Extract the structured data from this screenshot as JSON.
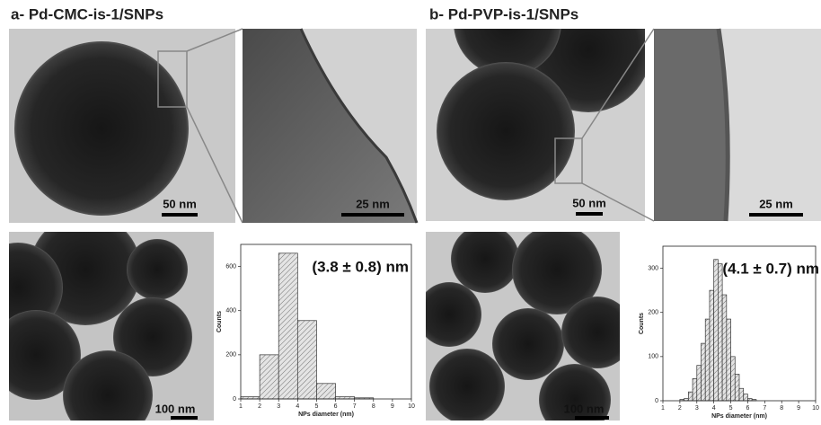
{
  "panels": [
    {
      "title": "a- Pd-CMC-is-1/SNPs",
      "scale_main": "50 nm",
      "scale_zoom": "25 nm",
      "scale_overview": "100 nm"
    },
    {
      "title": "b- Pd-PVP-is-1/SNPs",
      "scale_main": "50 nm",
      "scale_zoom": "25 nm",
      "scale_overview": "100 nm"
    }
  ],
  "chart_data": [
    {
      "type": "histogram",
      "annotation": "(3.8 ± 0.8) nm",
      "xlabel": "NPs diameter (nm)",
      "ylabel": "Counts",
      "bins": [
        1,
        2,
        3,
        4,
        5,
        6,
        7,
        8
      ],
      "values": [
        10,
        200,
        660,
        355,
        70,
        10,
        5
      ],
      "xlim": [
        1,
        10
      ],
      "xticks": [
        1,
        2,
        3,
        4,
        5,
        6,
        7,
        8,
        9,
        10
      ],
      "ylim": [
        0,
        700
      ],
      "yticks": [
        0,
        200,
        400,
        600
      ]
    },
    {
      "type": "histogram",
      "annotation": "(4.1 ± 0.7) nm",
      "xlabel": "NPs diameter (nm)",
      "ylabel": "Counts",
      "bins": [
        2,
        2.25,
        2.5,
        2.75,
        3,
        3.25,
        3.5,
        3.75,
        4,
        4.25,
        4.5,
        4.75,
        5,
        5.25,
        5.5,
        5.75,
        6,
        6.25,
        6.5
      ],
      "values": [
        3,
        5,
        20,
        50,
        80,
        130,
        185,
        250,
        320,
        310,
        240,
        185,
        100,
        60,
        28,
        15,
        5,
        3
      ],
      "xlim": [
        1,
        10
      ],
      "xticks": [
        1,
        2,
        3,
        4,
        5,
        6,
        7,
        8,
        9,
        10
      ],
      "ylim": [
        0,
        350
      ],
      "yticks": [
        0,
        100,
        200,
        300
      ]
    }
  ]
}
